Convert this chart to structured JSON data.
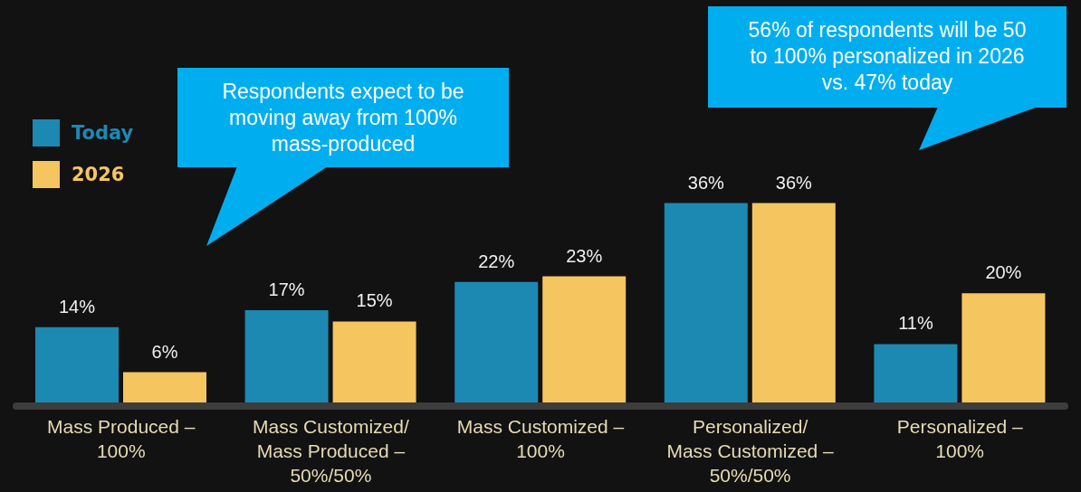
{
  "chart_data": {
    "type": "bar",
    "categories": [
      "Mass Produced – 100%",
      "Mass Customized/ Mass Produced – 50%/50%",
      "Mass Customized – 100%",
      "Personalized/ Mass Customized – 50%/50%",
      "Personalized – 100%"
    ],
    "series": [
      {
        "name": "Today",
        "color": "#1c89b3",
        "values": [
          14,
          17,
          22,
          36,
          11
        ],
        "value_labels": [
          "14%",
          "17%",
          "22%",
          "36%",
          "11%"
        ]
      },
      {
        "name": "2026",
        "color": "#f5c560",
        "values": [
          6,
          15,
          23,
          36,
          20
        ],
        "value_labels": [
          "6%",
          "15%",
          "23%",
          "36%",
          "20%"
        ]
      }
    ],
    "annotations": [
      "Respondents expect to be moving away from 100% mass-produced",
      "56% of respondents will be 50 to 100% personalized in 2026 vs. 47% today"
    ],
    "legend": "top left",
    "grid": false
  }
}
